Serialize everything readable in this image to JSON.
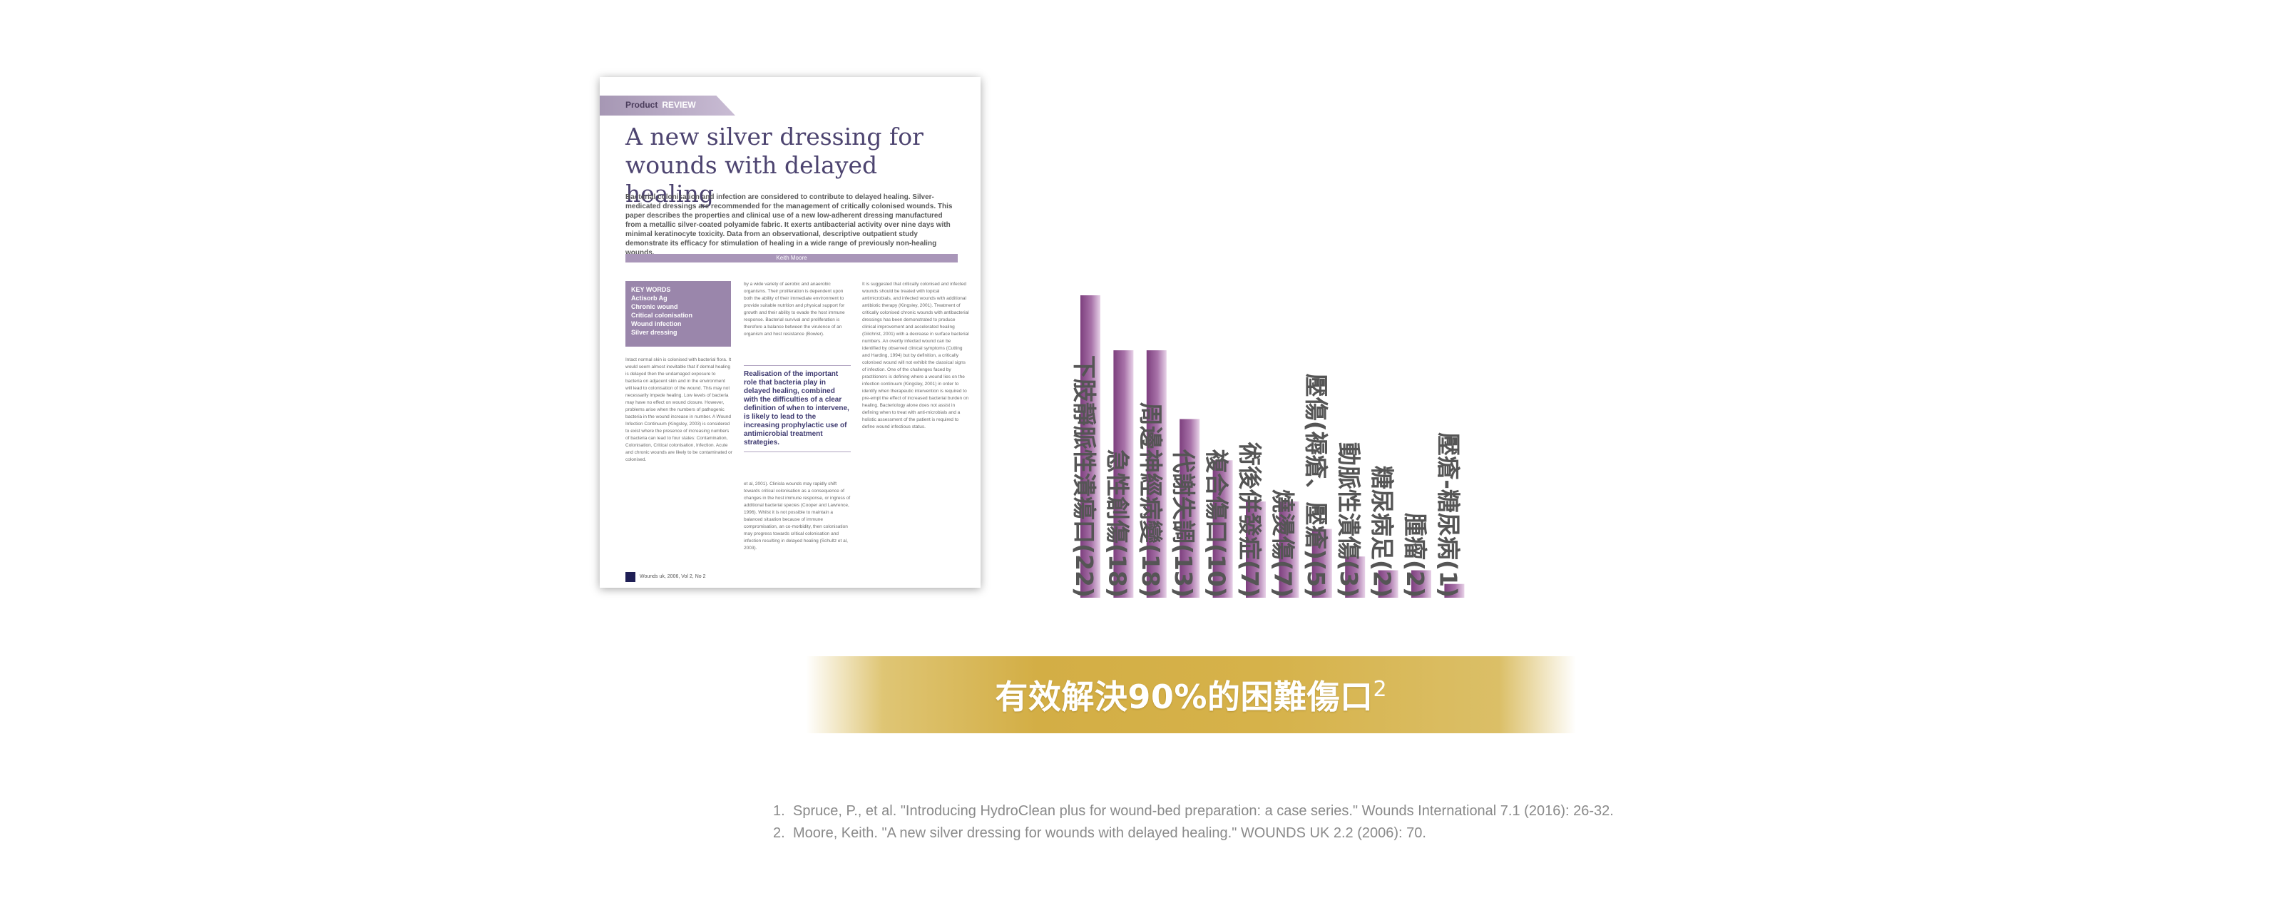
{
  "article": {
    "tab_label": "Product",
    "tab_label_accent": "REVIEW",
    "title": "A new silver dressing for wounds with delayed healing",
    "abstract": "Bacterial colonisation and infection are considered to contribute to delayed healing. Silver-medicated dressings are recommended for the management of critically colonised wounds. This paper describes the properties and clinical use of a new low-adherent dressing manufactured from a metallic silver-coated polyamide fabric. It exerts antibacterial activity over nine days with minimal keratinocyte toxicity. Data from an observational, descriptive outpatient study demonstrate its efficacy for stimulation of healing in a wide range of previously non-healing wounds.",
    "author": "Keith Moore",
    "key_words_title": "KEY WORDS",
    "key_words": [
      "Actisorb Ag",
      "Chronic wound",
      "Critical colonisation",
      "Wound infection",
      "Silver dressing"
    ],
    "col1_text": "Intact normal skin is colonised with bacterial flora. It would seem almost inevitable that if dermal healing is delayed then the undamaged exposure to bacteria on adjacent skin and in the environment will lead to colonisation of the wound. This may not necessarily impede healing. Low levels of bacteria may have no effect on wound closure. However, problems arise when the numbers of pathogenic bacteria in the wound increase in number. A Wound Infection Continuum (Kingsley, 2003) is considered to exist where the presence of increasing numbers of bacteria can lead to four states: Contamination, Colonisation, Critical colonisation, Infection. Acute and chronic wounds are likely to be contaminated or colonised.",
    "col2_text": "by a wide variety of aerobic and anaerobic organisms. Their proliferation is dependent upon both the ability of their immediate environment to provide suitable nutrition and physical support for growth and their ability to evade the host immune response. Bacterial survival and proliferation is therefore a balance between the virulence of an organism and host resistance (Bowler).",
    "pull_quote": "Realisation of the important role that bacteria play in delayed healing, combined with the difficulties of a clear definition of when to intervene, is likely to lead to the increasing prophylactic use of antimicrobial treatment strategies.",
    "col2_text_b": "et al, 2001). Clinicla wounds may rapidly shift towards critical colonisation as a consequence of changes in the host immune response, or ingress of additional bacterial species (Cooper and Lawrence, 1996). Whilst it is not possible to maintain a balanced situation because of immune compromisation, an co-morbidity, then colonisation may progress towards critical colonisation and infection resulting in delayed healing (Schultz et al, 2003).",
    "col3_text": "It is suggested that critically colonised and infected wounds should be treated with topical antimicrobials, and infected wounds with additional antibiotic therapy (Kingsley, 2001). Treatment of critically colonised chronic wounds with antibacterial dressings has been demonstrated to produce clinical improvement and accelerated healing (Gilchrist, 2001) with a decrease in surface bacterial numbers. An overtly infected wound can be identified by observed clinical symptoms (Cutting and Harding, 1994) but by definition, a critically colonised wound will not exhibit the classical signs of infection. One of the challenges faced by practitioners is defining where a wound lies on the infection continuum (Kingsley, 2001) in order to identify when therapeutic intervention is required to pre-empt the effect of increased bacterial burden on healing. Bacteriology alone does not assist in defining when to treat with anti-microbials and a holistic assessment of the patient is required to define wound infectious status.",
    "footer_text": "Wounds uk, 2006, Vol 2, No 2"
  },
  "chart_data": {
    "type": "bar",
    "title": "",
    "xlabel": "",
    "ylabel": "",
    "ylim": [
      0,
      22
    ],
    "grid": false,
    "legend": "none",
    "categories": [
      "下肢靜脈性潰瘍口(22)",
      "急性創傷(18)",
      "周邊神經病變(18)",
      "代謝失調(13)",
      "複合傷口(10)",
      "術後併發症(7)",
      "燒燙傷(7)",
      "壓傷(褥瘡、壓瘡)(5)",
      "動脈性潰傷(3)",
      "糖尿病足(2)",
      "腫瘤(2)",
      "壓瘡-糖尿病(1)"
    ],
    "values": [
      22,
      18,
      18,
      13,
      10,
      7,
      7,
      5,
      3,
      2,
      2,
      1
    ],
    "colors": {
      "bar_dark": "#7d3f7e",
      "bar_light": "#e8d2e8"
    }
  },
  "banner": {
    "text": "有效解決90%的困難傷口",
    "superscript": "2",
    "color": "#d3ae45"
  },
  "references": [
    {
      "num": "1.",
      "text": "Spruce, P., et al. \"Introducing HydroClean plus for wound-bed preparation: a case series.\" Wounds International 7.1 (2016): 26-32."
    },
    {
      "num": "2.",
      "text": "Moore, Keith. \"A new silver dressing for wounds with delayed healing.\" WOUNDS UK 2.2 (2006): 70."
    }
  ]
}
